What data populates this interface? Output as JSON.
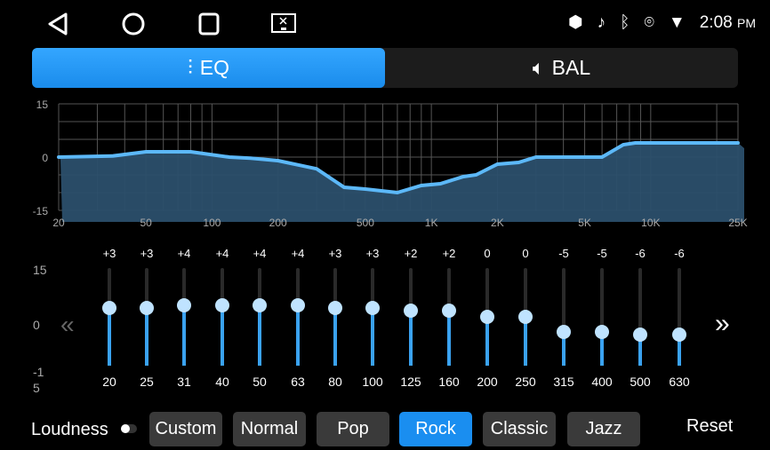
{
  "status": {
    "time": "2:08",
    "ampm": "PM"
  },
  "tabs": [
    {
      "label": "EQ",
      "icon": "equalizer-icon",
      "active": true
    },
    {
      "label": "BAL",
      "icon": "speaker-icon",
      "active": false
    }
  ],
  "accent": "#1a8ef0",
  "chart_data": {
    "type": "area",
    "ylim": [
      -15,
      15
    ],
    "xlim": [
      20,
      25000
    ],
    "xscale": "log",
    "y_ticks": [
      "15",
      "0",
      "-15"
    ],
    "x_ticks": [
      {
        "label": "20",
        "f": 20
      },
      {
        "label": "50",
        "f": 50
      },
      {
        "label": "100",
        "f": 100
      },
      {
        "label": "200",
        "f": 200
      },
      {
        "label": "500",
        "f": 500
      },
      {
        "label": "1K",
        "f": 1000
      },
      {
        "label": "2K",
        "f": 2000
      },
      {
        "label": "5K",
        "f": 5000
      },
      {
        "label": "10K",
        "f": 10000
      },
      {
        "label": "25K",
        "f": 25000
      }
    ],
    "curve": [
      [
        20,
        0
      ],
      [
        35,
        0.3
      ],
      [
        50,
        1.5
      ],
      [
        80,
        1.5
      ],
      [
        120,
        0
      ],
      [
        150,
        -0.3
      ],
      [
        200,
        -1
      ],
      [
        300,
        -3.3
      ],
      [
        400,
        -8.5
      ],
      [
        500,
        -9
      ],
      [
        700,
        -10
      ],
      [
        900,
        -8
      ],
      [
        1100,
        -7.5
      ],
      [
        1400,
        -5.5
      ],
      [
        1600,
        -5
      ],
      [
        2000,
        -2
      ],
      [
        2500,
        -1.5
      ],
      [
        3000,
        0
      ],
      [
        6000,
        0
      ],
      [
        7500,
        3.5
      ],
      [
        8500,
        4
      ],
      [
        25000,
        4
      ]
    ]
  },
  "sliders": {
    "scale": {
      "top": "15",
      "mid": "0",
      "bottom": "-1\n5"
    },
    "bands": [
      {
        "freq": "20",
        "label": "+3",
        "value": 3
      },
      {
        "freq": "25",
        "label": "+3",
        "value": 3
      },
      {
        "freq": "31",
        "label": "+4",
        "value": 4
      },
      {
        "freq": "40",
        "label": "+4",
        "value": 4
      },
      {
        "freq": "50",
        "label": "+4",
        "value": 4
      },
      {
        "freq": "63",
        "label": "+4",
        "value": 4
      },
      {
        "freq": "80",
        "label": "+3",
        "value": 3
      },
      {
        "freq": "100",
        "label": "+3",
        "value": 3
      },
      {
        "freq": "125",
        "label": "+2",
        "value": 2
      },
      {
        "freq": "160",
        "label": "+2",
        "value": 2
      },
      {
        "freq": "200",
        "label": "0",
        "value": 0
      },
      {
        "freq": "250",
        "label": "0",
        "value": 0
      },
      {
        "freq": "315",
        "label": "-5",
        "value": -5
      },
      {
        "freq": "400",
        "label": "-5",
        "value": -5
      },
      {
        "freq": "500",
        "label": "-6",
        "value": -6
      },
      {
        "freq": "630",
        "label": "-6",
        "value": -6
      }
    ]
  },
  "bottom": {
    "loudness": "Loudness",
    "loudness_on": false,
    "presets": [
      "Custom",
      "Normal",
      "Pop",
      "Rock",
      "Classic",
      "Jazz"
    ],
    "active_preset": "Rock",
    "reset": "Reset"
  }
}
